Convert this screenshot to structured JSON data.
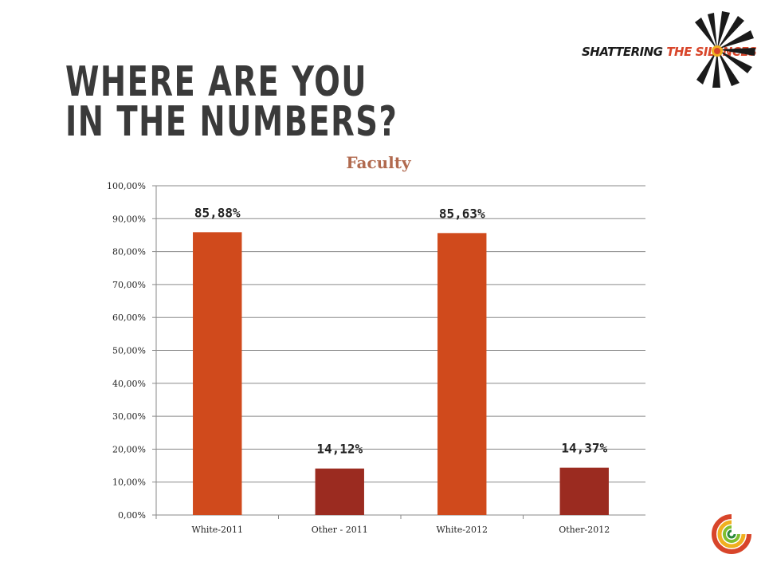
{
  "slide": {
    "title_line1": "WHERE ARE YOU",
    "title_line2": "IN THE NUMBERS?"
  },
  "logo": {
    "text_main": "SHATTERING",
    "text_accent": "THE SILENCES"
  },
  "colors": {
    "white_bar": "#d04a1c",
    "other_bar": "#9b2b20",
    "title": "#b16a4f",
    "accent": "#d8452a"
  },
  "chart_data": {
    "type": "bar",
    "title": "Faculty",
    "categories": [
      "White-2011",
      "Other - 2011",
      "White-2012",
      "Other-2012"
    ],
    "values": [
      85.88,
      14.12,
      85.63,
      14.37
    ],
    "data_labels": [
      "85,88%",
      "14,12%",
      "85,63%",
      "14,37%"
    ],
    "bar_colors": [
      "#d04a1c",
      "#9b2b20",
      "#d04a1c",
      "#9b2b20"
    ],
    "ylim": [
      0,
      100
    ],
    "yticks": [
      0,
      10,
      20,
      30,
      40,
      50,
      60,
      70,
      80,
      90,
      100
    ],
    "ytick_labels": [
      "0,00%",
      "10,00%",
      "20,00%",
      "30,00%",
      "40,00%",
      "50,00%",
      "60,00%",
      "70,00%",
      "80,00%",
      "90,00%",
      "100,00%"
    ],
    "grid": true,
    "legend": "none"
  }
}
